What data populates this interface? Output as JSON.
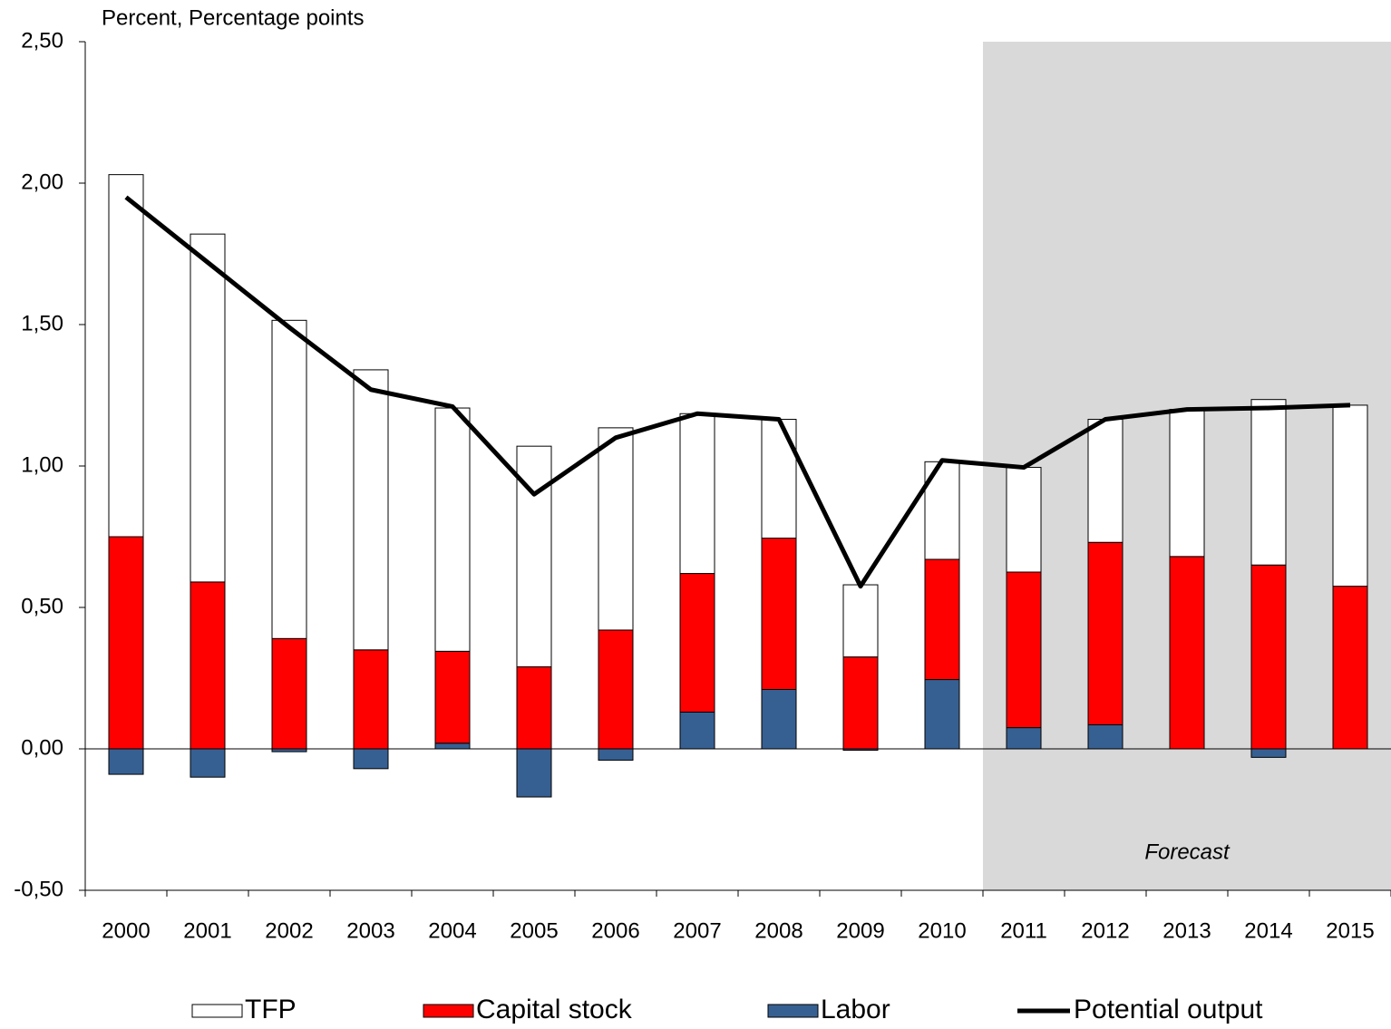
{
  "chart_data": {
    "type": "stacked_bar_line",
    "y_axis_label": "Percent, Percentage points",
    "categories": [
      "2000",
      "2001",
      "2002",
      "2003",
      "2004",
      "2005",
      "2006",
      "2007",
      "2008",
      "2009",
      "2010",
      "2011",
      "2012",
      "2013",
      "2014",
      "2015"
    ],
    "series": [
      {
        "name": "TFP",
        "color": "#ffffff",
        "kind": "bar",
        "values": [
          1.28,
          1.23,
          1.125,
          0.99,
          0.86,
          0.78,
          0.715,
          0.565,
          0.42,
          0.255,
          0.345,
          0.37,
          0.435,
          0.52,
          0.585,
          0.64
        ]
      },
      {
        "name": "Capital stock",
        "color": "#ff0000",
        "kind": "bar",
        "values": [
          0.75,
          0.59,
          0.39,
          0.35,
          0.325,
          0.29,
          0.42,
          0.49,
          0.535,
          0.325,
          0.425,
          0.55,
          0.645,
          0.68,
          0.65,
          0.575
        ]
      },
      {
        "name": "Labor",
        "color": "#376092",
        "kind": "bar",
        "values": [
          -0.09,
          -0.1,
          -0.01,
          -0.07,
          0.02,
          -0.17,
          -0.04,
          0.13,
          0.21,
          -0.005,
          0.245,
          0.075,
          0.085,
          0.0,
          -0.03,
          0.0
        ]
      },
      {
        "name": "Potential output",
        "color": "#000000",
        "kind": "line",
        "values": [
          1.95,
          1.72,
          1.49,
          1.27,
          1.21,
          0.9,
          1.1,
          1.185,
          1.165,
          0.575,
          1.02,
          0.995,
          1.165,
          1.2,
          1.205,
          1.215
        ]
      }
    ],
    "forecast_region": {
      "label": "Forecast",
      "from": "2011",
      "color": "#d9d9d9"
    },
    "ylim": [
      -0.5,
      2.5
    ],
    "yticks": [
      {
        "value": -0.5,
        "label": "-0,50"
      },
      {
        "value": 0,
        "label": "0,00"
      },
      {
        "value": 0.5,
        "label": "0,50"
      },
      {
        "value": 1,
        "label": "1,00"
      },
      {
        "value": 1.5,
        "label": "1,50"
      },
      {
        "value": 2,
        "label": "2,00"
      },
      {
        "value": 2.5,
        "label": "2,50"
      }
    ],
    "grid": false,
    "legend": "bottom"
  }
}
